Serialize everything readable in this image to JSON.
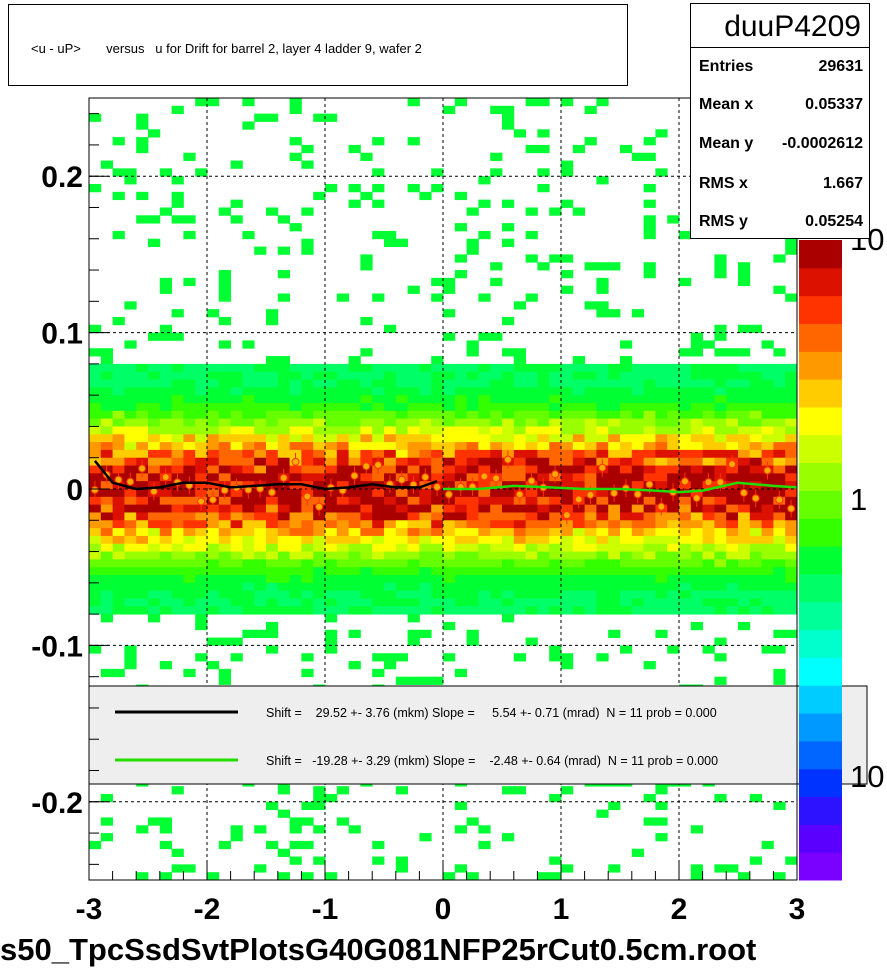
{
  "title": "<u - uP>       versus   u for Drift for barrel 2, layer 4 ladder 9, wafer 2",
  "stats": {
    "name": "duuP4209",
    "rows": [
      {
        "label": "Entries",
        "value": "29631"
      },
      {
        "label": "Mean x",
        "value": "0.05337"
      },
      {
        "label": "Mean y",
        "value": "-0.0002612"
      },
      {
        "label": "RMS x",
        "value": "1.667"
      },
      {
        "label": "RMS y",
        "value": "0.05254"
      }
    ]
  },
  "footer": "s50_TpcSsdSvtPlotsG40G081NFP25rCut0.5cm.root",
  "legend": [
    {
      "text": "Shift =    29.52 +- 3.76 (mkm) Slope =     5.54 +- 0.71 (mrad)  N = 11 prob = 0.000",
      "color": "#000000"
    },
    {
      "text": "Shift =   -19.28 +- 3.29 (mkm) Slope =    -2.48 +- 0.64 (mrad)  N = 11 prob = 0.000",
      "color": "#22dd00"
    }
  ],
  "colors": {
    "palette": [
      "#7a00ff",
      "#5a00ff",
      "#2c12ff",
      "#0033ff",
      "#0066ff",
      "#0099ff",
      "#00ccff",
      "#00ffff",
      "#00ffcc",
      "#00ff99",
      "#00ff66",
      "#00ff33",
      "#33ff00",
      "#66ff00",
      "#99ff00",
      "#ccff00",
      "#ffff00",
      "#ffcc00",
      "#ff9900",
      "#ff6600",
      "#ff3300",
      "#dd1100",
      "#aa0000"
    ],
    "marker_fill": "#ffaa00",
    "marker_edge": "#ff3300",
    "line_black": "#000000",
    "line_green": "#22dd00"
  },
  "chart_data": {
    "type": "heatmap",
    "title": "<u - uP>       versus   u for Drift for barrel 2, layer 4 ladder 9, wafer 2",
    "xlim": [
      -3,
      3
    ],
    "ylim": [
      -0.25,
      0.25
    ],
    "x_ticks": [
      "-3",
      "-2",
      "-1",
      "0",
      "1",
      "2",
      "3"
    ],
    "y_ticks": [
      "-0.2",
      "-0.1",
      "0",
      "0.1",
      "0.2"
    ],
    "z_scale": "log",
    "z_tick_labels": [
      "10",
      "1",
      "10"
    ],
    "grid": true,
    "band_center_y": 0.0,
    "band_rms_y": 0.05254,
    "series": [
      {
        "values_x": [
          -2.95,
          -2.8,
          -2.6,
          -2.4,
          -2.2,
          -2.0,
          -1.8,
          -1.6,
          -1.4,
          -1.2,
          -1.0,
          -0.8,
          -0.6,
          -0.4,
          -0.2,
          -0.05
        ],
        "values_y": [
          0.018,
          0.004,
          0.0,
          0.001,
          0.004,
          0.004,
          0.001,
          0.002,
          0.003,
          0.003,
          0.0,
          0.001,
          0.003,
          0.001,
          0.001,
          0.005
        ]
      },
      {
        "values_x": [
          0.0,
          0.3,
          0.6,
          0.9,
          1.2,
          1.5,
          1.8,
          2.0,
          2.2,
          2.5,
          2.8,
          3.0
        ],
        "values_y": [
          0.0,
          0.0,
          0.002,
          0.001,
          0.0,
          0.0,
          -0.001,
          -0.002,
          -0.001,
          0.004,
          0.002,
          0.001
        ]
      }
    ]
  }
}
